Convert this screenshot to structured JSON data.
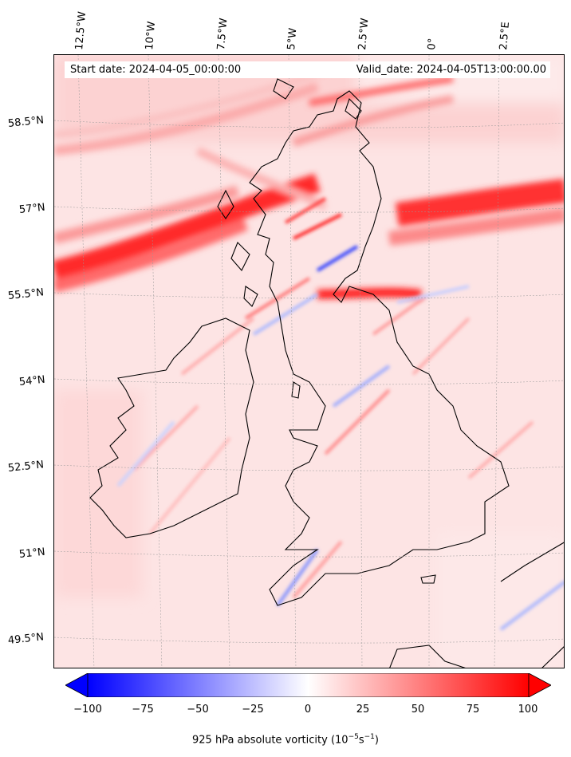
{
  "info": {
    "start_date": "Start date: 2024-04-05_00:00:00",
    "valid_date": "Valid_date: 2024-04-05T13:00:00.00"
  },
  "lon_labels": [
    "12.5°W",
    "10°W",
    "7.5°W",
    "5°W",
    "2.5°W",
    "0°",
    "2.5°E"
  ],
  "lat_labels": [
    "58.5°N",
    "57°N",
    "55.5°N",
    "54°N",
    "52.5°N",
    "51°N",
    "49.5°N"
  ],
  "colorbar": {
    "ticks": [
      "−100",
      "−75",
      "−50",
      "−25",
      "0",
      "25",
      "50",
      "75",
      "100"
    ],
    "label": "925 hPa absolute vorticity (10",
    "label_exp1": "−5",
    "label_mid": "s",
    "label_exp2": "−1",
    "label_end": ")",
    "range": [
      -100,
      100
    ],
    "colormap": "bwr",
    "extend": "both"
  },
  "colors": {
    "negative": "#0000ff",
    "zero": "#ffffff",
    "positive": "#ff0000",
    "coastline": "#000000"
  }
}
